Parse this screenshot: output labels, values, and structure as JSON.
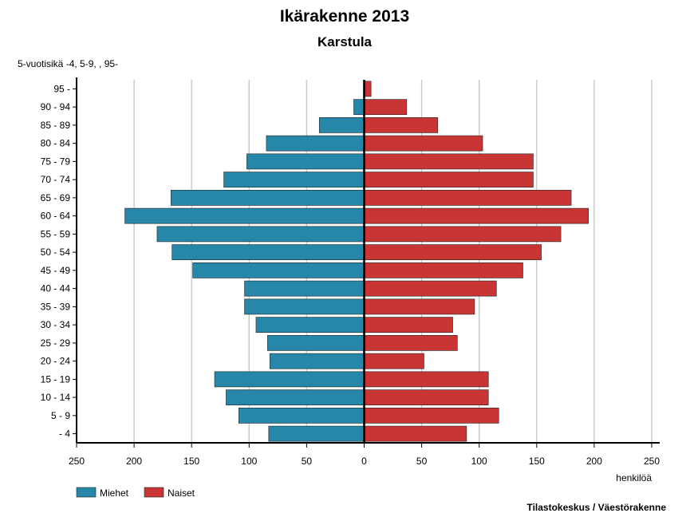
{
  "chart_data": {
    "type": "bar",
    "orientation": "horizontal-diverging",
    "title": "Ikärakenne 2013",
    "subtitle": "Karstula",
    "ylabel": "5-vuotisikä -4, 5-9, , 95-",
    "xlabel": "henkilöä",
    "source": "Tilastokeskus / Väestörakenne",
    "xlim": [
      -250,
      250
    ],
    "xticks": [
      -250,
      -200,
      -150,
      -100,
      -50,
      0,
      50,
      100,
      150,
      200,
      250
    ],
    "xtick_labels": [
      "250",
      "200",
      "150",
      "100",
      "50",
      "0",
      "50",
      "100",
      "150",
      "200",
      "250"
    ],
    "grid": true,
    "legend_position": "bottom-left",
    "categories": [
      "95 -",
      "90 - 94",
      "85 - 89",
      "80 - 84",
      "75 - 79",
      "70 - 74",
      "65 - 69",
      "60 - 64",
      "55 - 59",
      "50 - 54",
      "45 - 49",
      "40 - 44",
      "35 - 39",
      "30 - 34",
      "25 - 29",
      "20 - 24",
      "15 - 19",
      "10 - 14",
      "5 - 9",
      "- 4"
    ],
    "series": [
      {
        "name": "Miehet",
        "color": "#2687a8",
        "side": "left",
        "values": [
          0,
          9,
          39,
          85,
          102,
          122,
          168,
          208,
          180,
          167,
          149,
          104,
          104,
          94,
          84,
          82,
          130,
          120,
          109,
          83
        ]
      },
      {
        "name": "Naiset",
        "color": "#c93535",
        "side": "right",
        "values": [
          6,
          37,
          64,
          103,
          147,
          147,
          180,
          195,
          171,
          154,
          138,
          115,
          96,
          77,
          81,
          52,
          108,
          108,
          117,
          89
        ]
      }
    ]
  }
}
